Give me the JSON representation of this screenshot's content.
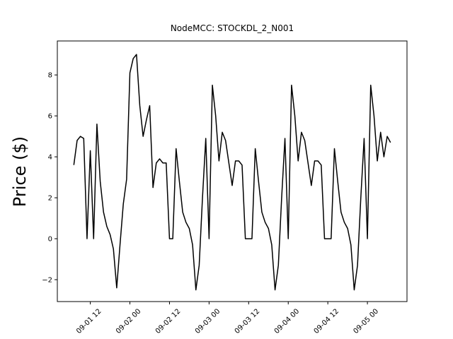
{
  "chart_data": {
    "type": "line",
    "title": "NodeMCC: STOCKDL_2_N001",
    "y_label": "Price ($)",
    "x": [
      "09-01 07",
      "09-01 08",
      "09-01 09",
      "09-01 10",
      "09-01 11",
      "09-01 12",
      "09-01 13",
      "09-01 14",
      "09-01 15",
      "09-01 16",
      "09-01 17",
      "09-01 18",
      "09-01 19",
      "09-01 20",
      "09-01 21",
      "09-01 22",
      "09-01 23",
      "09-02 00",
      "09-02 01",
      "09-02 02",
      "09-02 03",
      "09-02 04",
      "09-02 05",
      "09-02 06",
      "09-02 07",
      "09-02 08",
      "09-02 09",
      "09-02 10",
      "09-02 11",
      "09-02 12",
      "09-02 13",
      "09-02 14",
      "09-02 15",
      "09-02 16",
      "09-02 17",
      "09-02 18",
      "09-02 19",
      "09-02 20",
      "09-02 21",
      "09-02 22",
      "09-02 23",
      "09-03 00",
      "09-03 01",
      "09-03 02",
      "09-03 03",
      "09-03 04",
      "09-03 05",
      "09-03 06",
      "09-03 07",
      "09-03 08",
      "09-03 09",
      "09-03 10",
      "09-03 11",
      "09-03 12",
      "09-03 13",
      "09-03 14",
      "09-03 15",
      "09-03 16",
      "09-03 17",
      "09-03 18",
      "09-03 19",
      "09-03 20",
      "09-03 21",
      "09-03 22",
      "09-03 23",
      "09-04 00",
      "09-04 01",
      "09-04 02",
      "09-04 03",
      "09-04 04",
      "09-04 05",
      "09-04 06",
      "09-04 07",
      "09-04 08",
      "09-04 09",
      "09-04 10",
      "09-04 11",
      "09-04 12",
      "09-04 13",
      "09-04 14",
      "09-04 15",
      "09-04 16",
      "09-04 17",
      "09-04 18",
      "09-04 19",
      "09-04 20",
      "09-04 21",
      "09-04 22",
      "09-04 23",
      "09-05 00",
      "09-05 01",
      "09-05 02",
      "09-05 03",
      "09-05 04",
      "09-05 05",
      "09-05 06",
      "09-05 07"
    ],
    "series": [
      {
        "color": "#000000",
        "values": [
          3.6,
          4.8,
          5.0,
          4.9,
          0,
          4.3,
          0,
          5.6,
          2.8,
          1.3,
          0.6,
          0.2,
          -0.5,
          -2.4,
          -0.3,
          1.7,
          2.9,
          8.1,
          8.8,
          9.0,
          6.5,
          5.0,
          5.8,
          6.5,
          2.5,
          3.7,
          3.9,
          3.7,
          3.7,
          0,
          0,
          4.4,
          2.8,
          1.3,
          0.8,
          0.5,
          -0.3,
          -2.5,
          -1.3,
          2.0,
          4.9,
          0,
          7.5,
          6.0,
          3.8,
          5.2,
          4.8,
          3.7,
          2.6,
          3.8,
          3.8,
          3.6,
          0,
          0,
          0,
          4.4,
          2.8,
          1.3,
          0.8,
          0.5,
          -0.3,
          -2.5,
          -1.3,
          2.0,
          4.9,
          0,
          7.5,
          6.0,
          3.8,
          5.2,
          4.8,
          3.7,
          2.6,
          3.8,
          3.8,
          3.6,
          0,
          0,
          0,
          4.4,
          2.8,
          1.3,
          0.8,
          0.5,
          -0.3,
          -2.5,
          -1.3,
          2.0,
          4.9,
          0,
          7.5,
          6.0,
          3.8,
          5.2,
          4.0,
          5.0,
          4.7
        ]
      }
    ],
    "xlim": [
      "09-01 02",
      "09-05 12"
    ],
    "xticks": [
      "09-01 12",
      "09-02 00",
      "09-02 12",
      "09-03 00",
      "09-03 12",
      "09-04 00",
      "09-04 12",
      "09-05 00"
    ],
    "ylim": [
      -3.07,
      9.66
    ],
    "yticks": [
      {
        "value": -2,
        "label": "−2"
      },
      0,
      2,
      4,
      6,
      8
    ],
    "grid": false
  }
}
